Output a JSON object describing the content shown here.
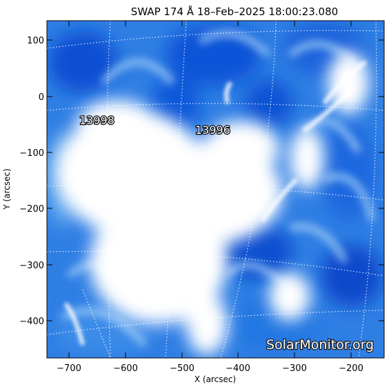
{
  "title": "SWAP 174 Å 18–Feb–2025 18:00:23.080",
  "x_axis": {
    "label": "X (arcsec)",
    "ticks": [
      "−700",
      "−600",
      "−500",
      "−400",
      "−300",
      "−200"
    ]
  },
  "y_axis": {
    "label": "Y (arcsec)",
    "ticks": [
      "100",
      "0",
      "−100",
      "−200",
      "−300",
      "−400"
    ]
  },
  "active_regions": [
    {
      "label": "13998"
    },
    {
      "label": "13996"
    }
  ],
  "watermark": "SolarMonitor.org",
  "colors": {
    "deep_blue": "#0a4fd6",
    "mid_blue": "#2a7fe6",
    "light_blue": "#8ec0f2",
    "saturated": "#ffffff",
    "background": "#ffffff"
  }
}
